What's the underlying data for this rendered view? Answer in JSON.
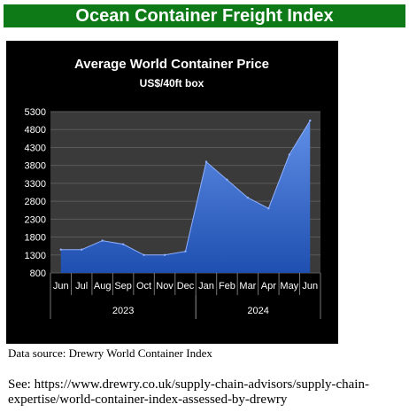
{
  "header": {
    "title": "Ocean Container Freight Index"
  },
  "footer": {
    "source": "Data source:  Drewry World Container Index",
    "see": "See: https://www.drewry.co.uk/supply-chain-advisors/supply-chain-expertise/world-container-index-assessed-by-drewry"
  },
  "chart_data": {
    "type": "area",
    "title": "Average World Container Price",
    "subtitle": "US$/40ft box",
    "xlabel": "",
    "ylabel": "",
    "categories": [
      "Jun",
      "Jul",
      "Aug",
      "Sep",
      "Oct",
      "Nov",
      "Dec",
      "Jan",
      "Feb",
      "Mar",
      "Apr",
      "May",
      "Jun"
    ],
    "year_groups": [
      {
        "label": "2023",
        "start": 0,
        "end": 6
      },
      {
        "label": "2024",
        "start": 7,
        "end": 12
      }
    ],
    "values": [
      1450,
      1450,
      1700,
      1600,
      1300,
      1300,
      1400,
      3900,
      3400,
      2900,
      2600,
      4100,
      5050
    ],
    "ylim": [
      800,
      5300
    ],
    "yticks": [
      5300,
      4800,
      4300,
      3800,
      3300,
      2800,
      2300,
      1800,
      1300,
      800
    ],
    "grid": true,
    "legend": "none",
    "colors": {
      "fill_top": "#5f8fe6",
      "fill_bottom": "#1f4fb0",
      "plot_bg": "#3a3a3a",
      "panel_bg": "#000000",
      "header_bg": "#0e7a17"
    }
  }
}
